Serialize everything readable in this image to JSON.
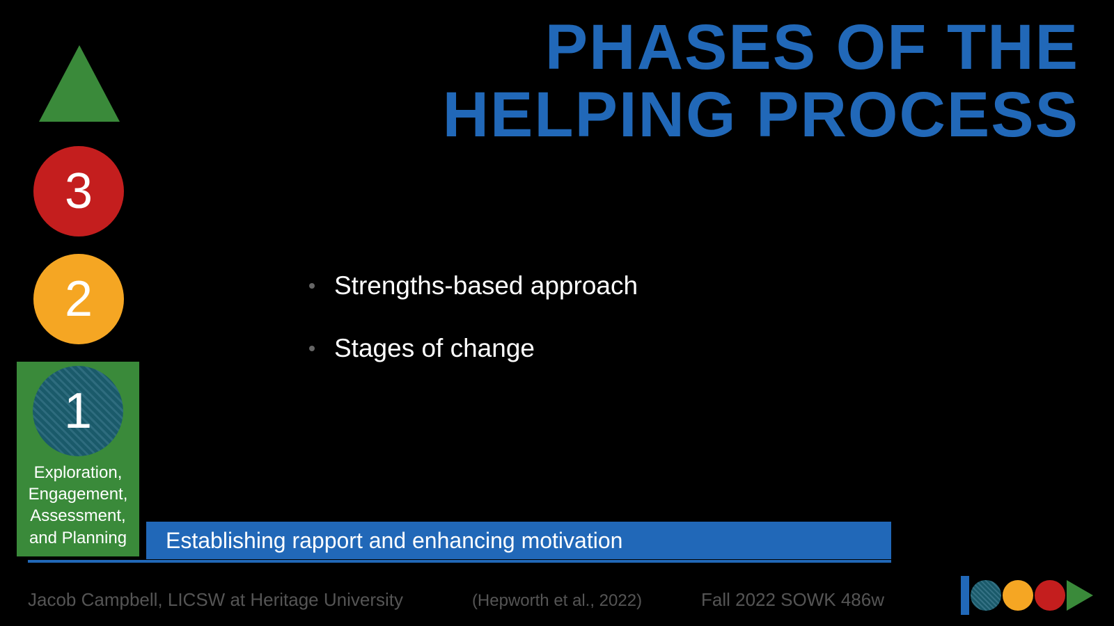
{
  "title": {
    "line1": "PHASES OF THE",
    "line2": "HELPING PROCESS",
    "color": "#2168b8",
    "fontsize": 92
  },
  "phases": {
    "triangle_color": "#3a8a3a",
    "circle3": {
      "label": "3",
      "color": "#c41e1e"
    },
    "circle2": {
      "label": "2",
      "color": "#f5a623"
    },
    "circle1": {
      "label": "1",
      "color": "#1a5a6a",
      "highlight_bg": "#3a8a3a",
      "description": "Exploration, Engagement, Assessment, and Planning"
    }
  },
  "bullets": [
    {
      "text": "Strengths-based approach"
    },
    {
      "text": "Stages of change"
    }
  ],
  "subtitle": {
    "text": "Establishing rapport and enhancing motivation",
    "bg_color": "#2168b8"
  },
  "footer": {
    "left": "Jacob Campbell, LICSW at Heritage University",
    "center": "(Hepworth et al., 2022)",
    "right": "Fall 2022 SOWK 486w"
  },
  "logo": {
    "bar_color": "#2168b8",
    "teal": "#1a5a6a",
    "orange": "#f5a623",
    "red": "#c41e1e",
    "green": "#3a8a3a"
  },
  "background": "#000000"
}
